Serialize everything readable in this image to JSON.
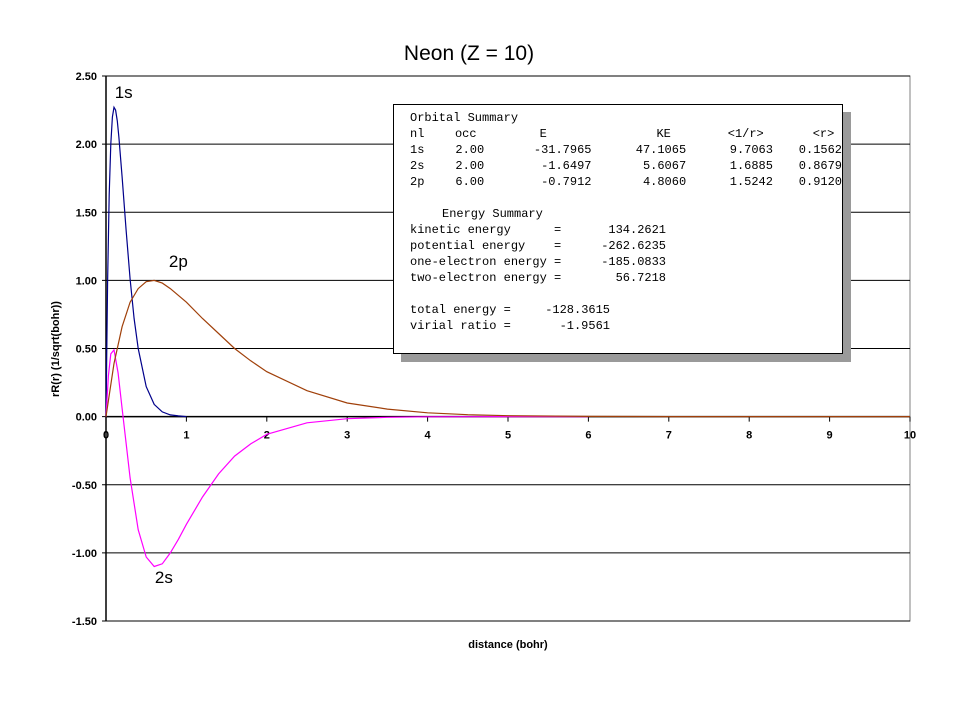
{
  "chart_data": {
    "type": "line",
    "title": "Neon (Z = 10)",
    "xlabel": "distance (bohr)",
    "ylabel": "rR(r) (1/sqrt(bohr))",
    "xlim": [
      0,
      10
    ],
    "ylim": [
      -1.5,
      2.5
    ],
    "x_ticks": [
      "0",
      "1",
      "2",
      "3",
      "4",
      "5",
      "6",
      "7",
      "8",
      "9",
      "10"
    ],
    "y_ticks": [
      "2.50",
      "2.00",
      "1.50",
      "1.00",
      "0.50",
      "0.00",
      "-0.50",
      "-1.00",
      "-1.50"
    ],
    "grid": true,
    "series": [
      {
        "name": "1s",
        "color": "#00008b",
        "x": [
          0,
          0.02,
          0.04,
          0.06,
          0.08,
          0.1,
          0.12,
          0.14,
          0.16,
          0.2,
          0.25,
          0.3,
          0.35,
          0.4,
          0.5,
          0.6,
          0.7,
          0.8,
          0.9,
          1.0
        ],
        "y": [
          0.0,
          0.99,
          1.63,
          2.0,
          2.2,
          2.27,
          2.25,
          2.17,
          2.05,
          1.76,
          1.37,
          1.01,
          0.72,
          0.5,
          0.22,
          0.09,
          0.035,
          0.013,
          0.005,
          0.0
        ]
      },
      {
        "name": "2s",
        "color": "#ff00ff",
        "x": [
          0,
          0.03,
          0.06,
          0.1,
          0.15,
          0.2,
          0.3,
          0.4,
          0.5,
          0.6,
          0.7,
          0.8,
          0.9,
          1.0,
          1.2,
          1.4,
          1.6,
          1.8,
          2.0,
          2.5,
          3.0,
          3.5,
          4.0,
          4.5,
          5.0,
          6.0
        ],
        "y": [
          0.0,
          0.3,
          0.46,
          0.49,
          0.32,
          0.06,
          -0.45,
          -0.83,
          -1.03,
          -1.1,
          -1.08,
          -1.0,
          -0.9,
          -0.79,
          -0.59,
          -0.42,
          -0.29,
          -0.2,
          -0.13,
          -0.045,
          -0.015,
          -0.005,
          -0.0015,
          -0.0005,
          0.0,
          0.0
        ]
      },
      {
        "name": "2p",
        "color": "#a0400a",
        "x": [
          0,
          0.1,
          0.2,
          0.3,
          0.4,
          0.5,
          0.6,
          0.7,
          0.8,
          1.0,
          1.2,
          1.4,
          1.6,
          1.8,
          2.0,
          2.5,
          3.0,
          3.5,
          4.0,
          4.5,
          5.0,
          6.0,
          7.0,
          8.0,
          9.0,
          10.0
        ],
        "y": [
          0.0,
          0.39,
          0.66,
          0.84,
          0.94,
          0.99,
          1.0,
          0.98,
          0.94,
          0.84,
          0.72,
          0.61,
          0.5,
          0.41,
          0.33,
          0.19,
          0.1,
          0.055,
          0.028,
          0.014,
          0.007,
          0.002,
          0.0005,
          0.0001,
          0.0,
          0.0
        ]
      }
    ],
    "annotations": [
      {
        "text": "1s",
        "x": 0.22,
        "y": 2.34
      },
      {
        "text": "2p",
        "x": 0.9,
        "y": 1.1
      },
      {
        "text": "2s",
        "x": 0.72,
        "y": -1.22
      }
    ]
  },
  "summary": {
    "orbital_title": "Orbital Summary",
    "headers": [
      "nl",
      "occ",
      "E",
      "KE",
      "<1/r>",
      "<r>"
    ],
    "rows": [
      [
        "1s",
        "2.00",
        "-31.7965",
        "47.1065",
        "9.7063",
        "0.1562"
      ],
      [
        "2s",
        "2.00",
        "-1.6497",
        "5.6067",
        "1.6885",
        "0.8679"
      ],
      [
        "2p",
        "6.00",
        "-0.7912",
        "4.8060",
        "1.5242",
        "0.9120"
      ]
    ],
    "energy_title": "Energy Summary",
    "energy_rows": [
      {
        "label": "kinetic energy      =",
        "value": "134.2621"
      },
      {
        "label": "potential energy    =",
        "value": "-262.6235"
      },
      {
        "label": "one-electron energy =",
        "value": "-185.0833"
      },
      {
        "label": "two-electron energy =",
        "value": "56.7218"
      }
    ],
    "total_rows": [
      {
        "label": "total energy =",
        "value": "-128.3615"
      },
      {
        "label": "virial ratio =",
        "value": "-1.9561"
      }
    ]
  }
}
